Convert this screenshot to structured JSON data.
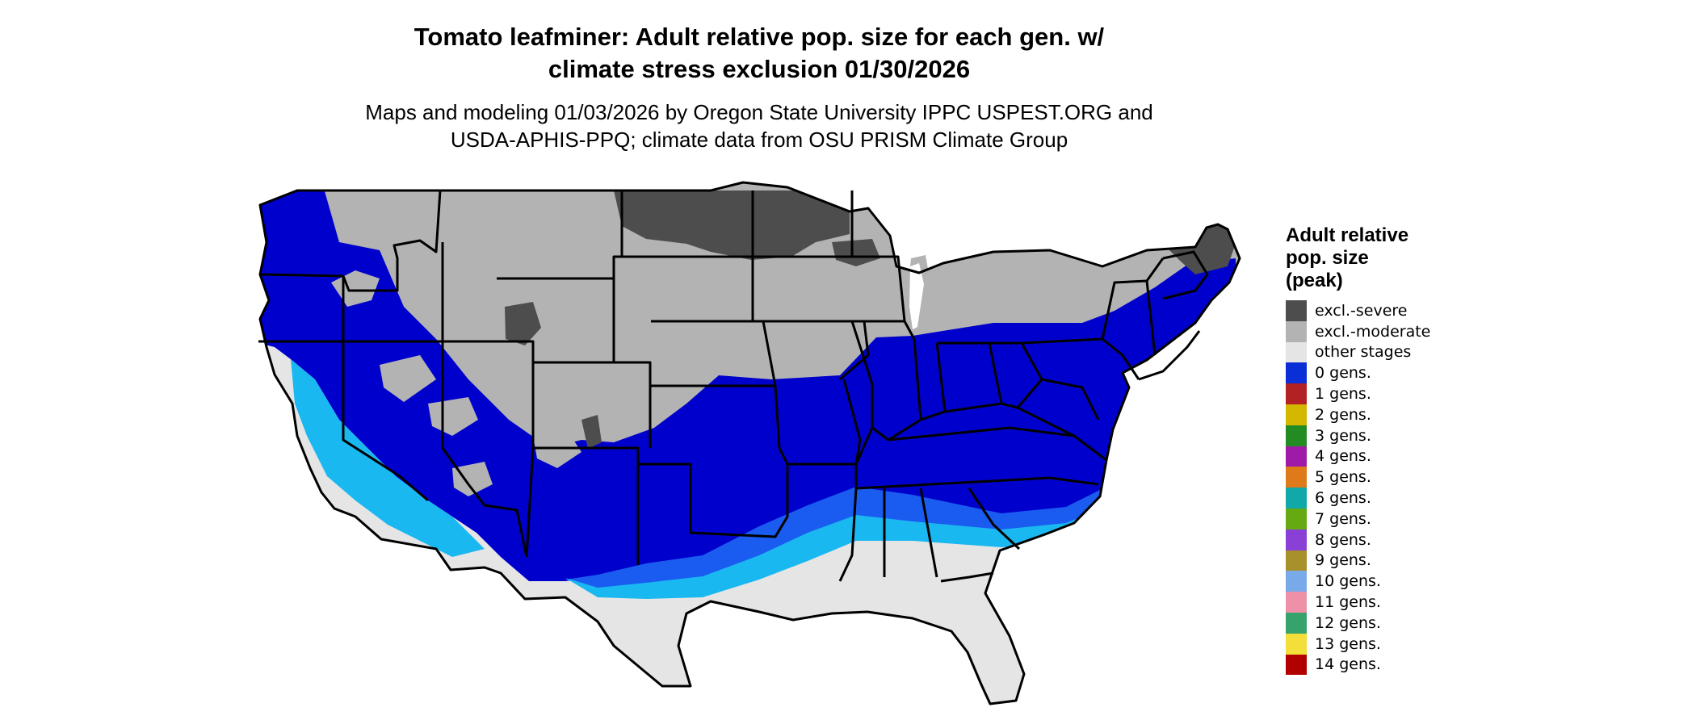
{
  "title_line1": "Tomato leafminer: Adult relative pop. size for each gen. w/",
  "title_line2": "climate stress exclusion 01/30/2026",
  "subtitle_line1": "Maps and modeling 01/03/2026 by Oregon State University IPPC USPEST.ORG and",
  "subtitle_line2": "USDA-APHIS-PPQ; climate data from OSU PRISM Climate Group",
  "legend": {
    "title_line1": "Adult relative",
    "title_line2": "pop. size",
    "title_line3": "(peak)",
    "items": [
      {
        "label": "excl.-severe",
        "color": "#4d4d4d"
      },
      {
        "label": "excl.-moderate",
        "color": "#b3b3b3"
      },
      {
        "label": "other stages",
        "color": "#e5e5e5"
      },
      {
        "label": "0 gens.",
        "color": "#0a2fd6"
      },
      {
        "label": "1 gens.",
        "color": "#b22222"
      },
      {
        "label": "2 gens.",
        "color": "#d4b800"
      },
      {
        "label": "3 gens.",
        "color": "#228b22"
      },
      {
        "label": "4 gens.",
        "color": "#a01aa8"
      },
      {
        "label": "5 gens.",
        "color": "#de7a1a"
      },
      {
        "label": "6 gens.",
        "color": "#10a8a8"
      },
      {
        "label": "7 gens.",
        "color": "#66aa12"
      },
      {
        "label": "8 gens.",
        "color": "#8a3fd6"
      },
      {
        "label": "9 gens.",
        "color": "#a8912a"
      },
      {
        "label": "10 gens.",
        "color": "#78aaea"
      },
      {
        "label": "11 gens.",
        "color": "#ee90a8"
      },
      {
        "label": "12 gens.",
        "color": "#36a36c"
      },
      {
        "label": "13 gens.",
        "color": "#f4de3a"
      },
      {
        "label": "14 gens.",
        "color": "#b00000"
      }
    ]
  },
  "map_colors": {
    "excl_severe": "#4d4d4d",
    "excl_moderate": "#b3b3b3",
    "other_stages": "#e5e5e5",
    "zero_gens_dark": "#0000cd",
    "zero_gens_mid": "#1a5cf0",
    "zero_gens_light": "#1ab8f0",
    "zero_gens_pale": "#38d4f8"
  }
}
